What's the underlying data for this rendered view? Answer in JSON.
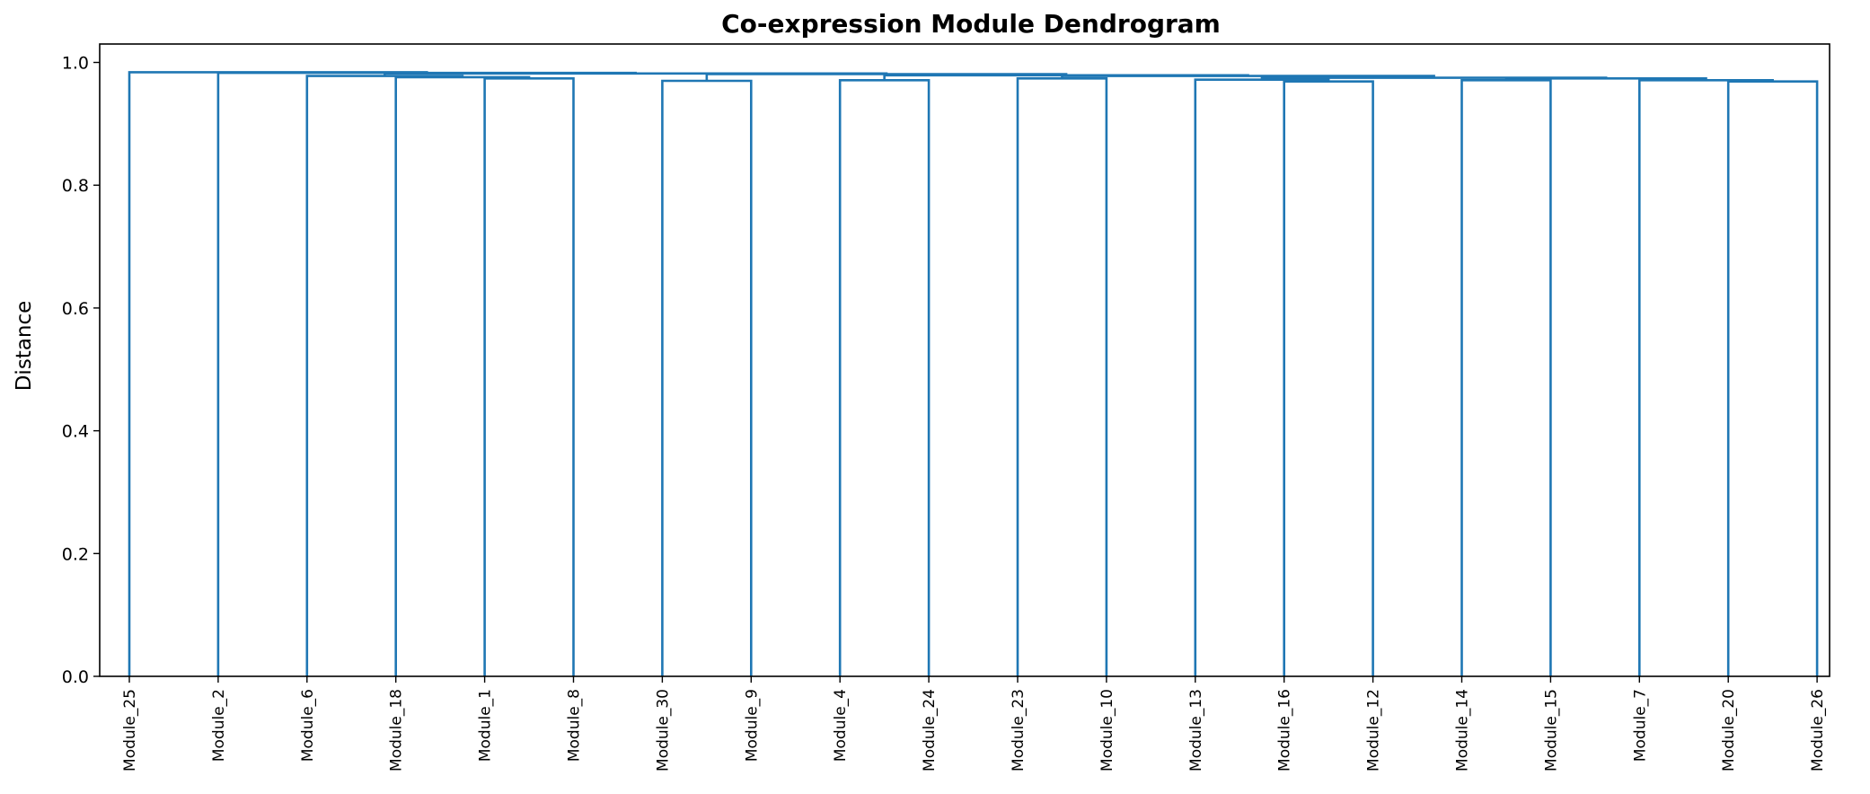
{
  "chart_data": {
    "type": "dendrogram",
    "title": "Co-expression Module Dendrogram",
    "xlabel": "",
    "ylabel": "Distance",
    "ylim": [
      0,
      1.03
    ],
    "yticks": [
      0.0,
      0.2,
      0.4,
      0.6,
      0.8,
      1.0
    ],
    "ytick_labels": [
      "0.0",
      "0.2",
      "0.4",
      "0.6",
      "0.8",
      "1.0"
    ],
    "grid": false,
    "link_color": "#1f77b4",
    "leaves": [
      "Module_25",
      "Module_2",
      "Module_6",
      "Module_18",
      "Module_1",
      "Module_8",
      "Module_30",
      "Module_9",
      "Module_4",
      "Module_24",
      "Module_23",
      "Module_10",
      "Module_13",
      "Module_16",
      "Module_12",
      "Module_14",
      "Module_15",
      "Module_7",
      "Module_20",
      "Module_26"
    ],
    "merges": [
      {
        "left": 4,
        "right": 5,
        "height": 0.974
      },
      {
        "left": 3,
        "right": 20,
        "height": 0.976
      },
      {
        "left": 2,
        "right": 21,
        "height": 0.978
      },
      {
        "left": 6,
        "right": 7,
        "height": 0.97
      },
      {
        "left": 8,
        "right": 9,
        "height": 0.971
      },
      {
        "left": 10,
        "right": 11,
        "height": 0.974
      },
      {
        "left": 13,
        "right": 14,
        "height": 0.969
      },
      {
        "left": 12,
        "right": 26,
        "height": 0.972
      },
      {
        "left": 15,
        "right": 16,
        "height": 0.971
      },
      {
        "left": 18,
        "right": 19,
        "height": 0.969
      },
      {
        "left": 17,
        "right": 29,
        "height": 0.971
      },
      {
        "left": 28,
        "right": 30,
        "height": 0.974
      },
      {
        "left": 27,
        "right": 31,
        "height": 0.975
      },
      {
        "left": 25,
        "right": 32,
        "height": 0.978
      },
      {
        "left": 24,
        "right": 33,
        "height": 0.979
      },
      {
        "left": 23,
        "right": 34,
        "height": 0.981
      },
      {
        "left": 22,
        "right": 35,
        "height": 0.982
      },
      {
        "left": 1,
        "right": 36,
        "height": 0.983
      },
      {
        "left": 0,
        "right": 37,
        "height": 0.984
      }
    ]
  }
}
